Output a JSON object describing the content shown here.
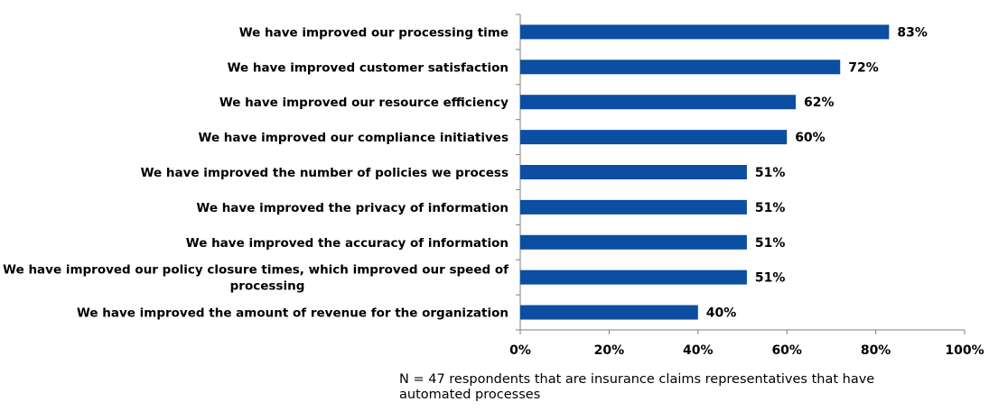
{
  "chart_data": {
    "type": "bar",
    "orientation": "horizontal",
    "categories": [
      "We have improved our processing time",
      "We have improved customer satisfaction",
      "We have improved our resource efficiency",
      "We have improved our compliance initiatives",
      "We have improved the number of policies we process",
      "We have improved the privacy of information",
      "We have improved the accuracy of information",
      "We have improved our policy closure times, which improved our speed of processing",
      "We have improved the amount of revenue for the organization"
    ],
    "category_lines": [
      [
        "We have improved our processing time"
      ],
      [
        "We have improved customer satisfaction"
      ],
      [
        "We have improved our resource efficiency"
      ],
      [
        "We have improved our compliance initiatives"
      ],
      [
        "We have improved the number of policies we process"
      ],
      [
        "We have improved the privacy of information"
      ],
      [
        "We have improved the accuracy of information"
      ],
      [
        "We have improved our policy closure times, which improved our speed of",
        "processing"
      ],
      [
        "We have improved the amount of revenue for the organization"
      ]
    ],
    "values": [
      83,
      72,
      62,
      60,
      51,
      51,
      51,
      51,
      40
    ],
    "value_labels": [
      "83%",
      "72%",
      "62%",
      "60%",
      "51%",
      "51%",
      "51%",
      "51%",
      "40%"
    ],
    "xlim": [
      0,
      100
    ],
    "xticks": [
      0,
      20,
      40,
      60,
      80,
      100
    ],
    "xtick_labels": [
      "0%",
      "20%",
      "40%",
      "60%",
      "80%",
      "100%"
    ],
    "bar_color": "#0b4ea2",
    "grid": false,
    "legend": "none"
  },
  "footnote": "N = 47 respondents that are insurance claims representatives that have automated processes"
}
